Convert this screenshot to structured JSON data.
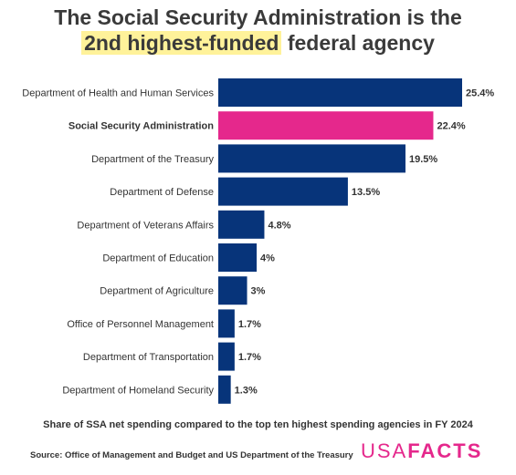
{
  "title": {
    "line1": "The Social Security Administration is the",
    "highlight": "2nd highest-funded",
    "line2_rest": " federal agency"
  },
  "colors": {
    "bar": "#07347a",
    "highlight_bar": "#e5288c",
    "title_highlight": "#fff29a"
  },
  "chart_data": {
    "type": "bar",
    "orientation": "horizontal",
    "categories": [
      "Department of Health and Human Services",
      "Social Security Administration",
      "Department of the Treasury",
      "Department of Defense",
      "Department of Veterans Affairs",
      "Department of Education",
      "Department of Agriculture",
      "Office of Personnel Management",
      "Department of Transportation",
      "Department of Homeland Security"
    ],
    "values": [
      25.4,
      22.4,
      19.5,
      13.5,
      4.8,
      4,
      3,
      1.7,
      1.7,
      1.3
    ],
    "value_labels": [
      "25.4%",
      "22.4%",
      "19.5%",
      "13.5%",
      "4.8%",
      "4%",
      "3%",
      "1.7%",
      "1.7%",
      "1.3%"
    ],
    "highlight_category": "Social Security Administration",
    "xlim": [
      0,
      25.4
    ],
    "grid": false,
    "legend": "none"
  },
  "caption": "Share of SSA net spending compared to the top ten highest spending agencies in FY 2024",
  "source": "Source: Office of Management and Budget and US Department of the Treasury",
  "logo": {
    "part1": "USA",
    "part2": "FACTS"
  }
}
